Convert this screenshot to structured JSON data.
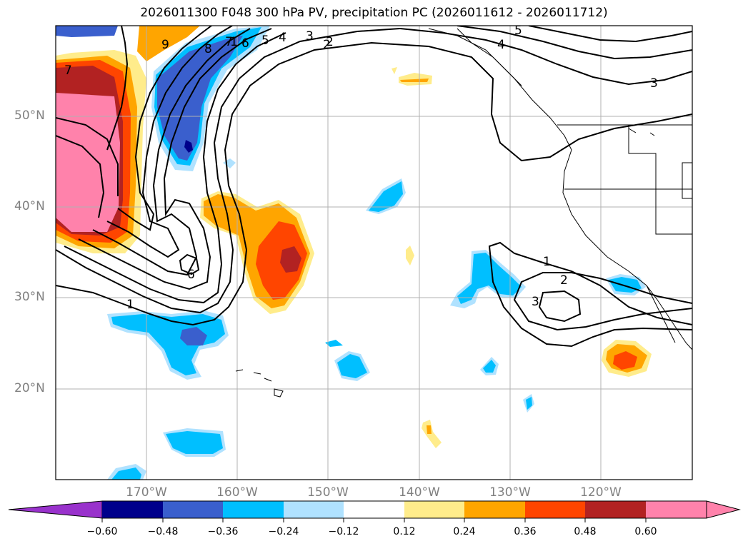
{
  "title": "2026011300 F048 300 hPa PV, precipitation PC (2026011612 - 2026011712)",
  "latitude_labels": [
    "50°N",
    "40°N",
    "30°N",
    "20°N"
  ],
  "longitude_labels": [
    "170°W",
    "160°W",
    "150°W",
    "140°W",
    "130°W",
    "120°W"
  ],
  "contour_labels": [
    "9",
    "8",
    "7",
    "6",
    "5",
    "4",
    "3",
    "2",
    "1",
    "6",
    "1",
    "2",
    "3",
    "1",
    "2",
    "3",
    "4",
    "5",
    "7"
  ],
  "colorbar": {
    "tick_labels": [
      "−0.60",
      "−0.48",
      "−0.36",
      "−0.24",
      "−0.12",
      "0.12",
      "0.24",
      "0.36",
      "0.48",
      "0.60"
    ],
    "colors": [
      "#9932cc",
      "#00008b",
      "#3a5fcd",
      "#00bfff",
      "#b0e2ff",
      "#ffffff",
      "#ffec8b",
      "#ffa500",
      "#ff4500",
      "#b22222",
      "#ff82ab"
    ]
  }
}
